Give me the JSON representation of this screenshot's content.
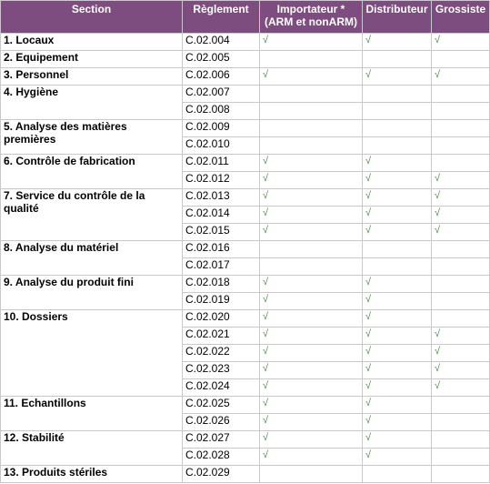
{
  "headers": {
    "section": "Section",
    "reglement": "Règlement",
    "importateur_line1": "Importateur *",
    "importateur_line2": "(ARM et nonARM)",
    "distributeur": "Distributeur",
    "grossiste": "Grossiste"
  },
  "check_symbol": "√",
  "groups": [
    {
      "section": "1. Locaux",
      "rows": [
        {
          "reg": "C.02.004",
          "imp": true,
          "dist": true,
          "gros": true
        }
      ]
    },
    {
      "section": "2. Equipement",
      "rows": [
        {
          "reg": "C.02.005",
          "imp": false,
          "dist": false,
          "gros": false
        }
      ]
    },
    {
      "section": "3. Personnel",
      "rows": [
        {
          "reg": "C.02.006",
          "imp": true,
          "dist": true,
          "gros": true
        }
      ]
    },
    {
      "section": "4. Hygiène",
      "rows": [
        {
          "reg": "C.02.007",
          "imp": false,
          "dist": false,
          "gros": false
        },
        {
          "reg": "C.02.008",
          "imp": false,
          "dist": false,
          "gros": false
        }
      ]
    },
    {
      "section": "5. Analyse des matières premières",
      "rows": [
        {
          "reg": "C.02.009",
          "imp": false,
          "dist": false,
          "gros": false
        },
        {
          "reg": "C.02.010",
          "imp": false,
          "dist": false,
          "gros": false
        }
      ]
    },
    {
      "section": "6. Contrôle de fabrication",
      "rows": [
        {
          "reg": "C.02.011",
          "imp": true,
          "dist": true,
          "gros": false
        },
        {
          "reg": "C.02.012",
          "imp": true,
          "dist": true,
          "gros": true
        }
      ]
    },
    {
      "section": "7. Service du contrôle de la qualité",
      "rows": [
        {
          "reg": "C.02.013",
          "imp": true,
          "dist": true,
          "gros": true
        },
        {
          "reg": "C.02.014",
          "imp": true,
          "dist": true,
          "gros": true
        },
        {
          "reg": "C.02.015",
          "imp": true,
          "dist": true,
          "gros": true
        }
      ]
    },
    {
      "section": "8. Analyse du matériel",
      "rows": [
        {
          "reg": "C.02.016",
          "imp": false,
          "dist": false,
          "gros": false
        },
        {
          "reg": "C.02.017",
          "imp": false,
          "dist": false,
          "gros": false
        }
      ]
    },
    {
      "section": "9. Analyse du produit fini",
      "rows": [
        {
          "reg": "C.02.018",
          "imp": true,
          "dist": true,
          "gros": false
        },
        {
          "reg": "C.02.019",
          "imp": true,
          "dist": true,
          "gros": false
        }
      ]
    },
    {
      "section": "10. Dossiers",
      "rows": [
        {
          "reg": "C.02.020",
          "imp": true,
          "dist": true,
          "gros": false
        },
        {
          "reg": "C.02.021",
          "imp": true,
          "dist": true,
          "gros": true
        },
        {
          "reg": "C.02.022",
          "imp": true,
          "dist": true,
          "gros": true
        },
        {
          "reg": "C.02.023",
          "imp": true,
          "dist": true,
          "gros": true
        },
        {
          "reg": "C.02.024",
          "imp": true,
          "dist": true,
          "gros": true
        }
      ]
    },
    {
      "section": "11. Echantillons",
      "rows": [
        {
          "reg": "C.02.025",
          "imp": true,
          "dist": true,
          "gros": false
        },
        {
          "reg": "C.02.026",
          "imp": true,
          "dist": true,
          "gros": false
        }
      ]
    },
    {
      "section": "12. Stabilité",
      "rows": [
        {
          "reg": "C.02.027",
          "imp": true,
          "dist": true,
          "gros": false
        },
        {
          "reg": "C.02.028",
          "imp": true,
          "dist": true,
          "gros": false
        }
      ]
    },
    {
      "section": "13. Produits stériles",
      "rows": [
        {
          "reg": "C.02.029",
          "imp": false,
          "dist": false,
          "gros": false
        }
      ]
    }
  ]
}
